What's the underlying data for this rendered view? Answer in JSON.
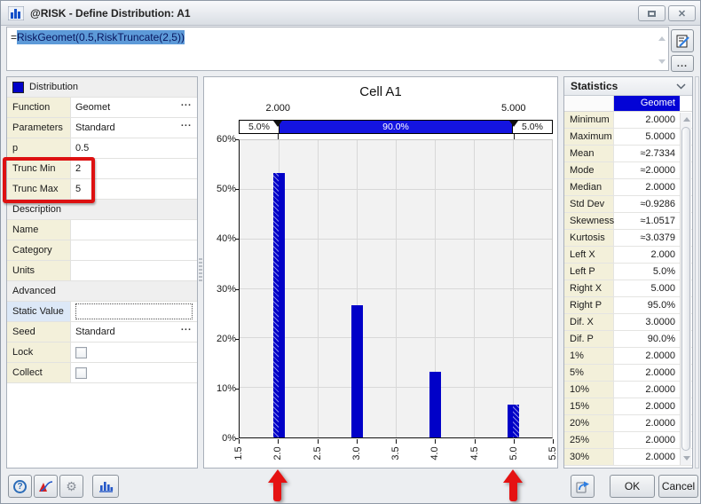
{
  "window": {
    "title": "@RISK - Define Distribution: A1"
  },
  "formula": {
    "prefix": "=",
    "selected_text": "RiskGeomet(0.5,RiskTruncate(2,5))"
  },
  "properties": {
    "rows": [
      {
        "type": "header",
        "label": "Distribution",
        "icon": "distribution-swatch"
      },
      {
        "type": "value",
        "label": "Function",
        "value": "Geomet",
        "ellipsis": true
      },
      {
        "type": "value",
        "label": "Parameters",
        "value": "Standard",
        "ellipsis": true
      },
      {
        "type": "value",
        "label": "p",
        "value": "0.5"
      },
      {
        "type": "value",
        "label": "Trunc Min",
        "value": "2"
      },
      {
        "type": "value",
        "label": "Trunc Max",
        "value": "5"
      },
      {
        "type": "header",
        "label": "Description"
      },
      {
        "type": "value",
        "label": "Name",
        "value": ""
      },
      {
        "type": "value",
        "label": "Category",
        "value": ""
      },
      {
        "type": "value",
        "label": "Units",
        "value": ""
      },
      {
        "type": "header",
        "label": "Advanced"
      },
      {
        "type": "input",
        "label": "Static Value",
        "value": ""
      },
      {
        "type": "value",
        "label": "Seed",
        "value": "Standard",
        "ellipsis": true
      },
      {
        "type": "checkbox",
        "label": "Lock",
        "checked": false
      },
      {
        "type": "checkbox",
        "label": "Collect",
        "checked": false
      }
    ]
  },
  "chart_data": {
    "type": "bar",
    "title": "Cell A1",
    "x": [
      2.0,
      3.0,
      4.0,
      5.0
    ],
    "values": [
      53.3,
      26.7,
      13.3,
      6.7
    ],
    "y_unit": "%",
    "xlim": [
      1.5,
      5.5
    ],
    "ylim": [
      0,
      60
    ],
    "x_ticks": [
      1.5,
      2.0,
      2.5,
      3.0,
      3.5,
      4.0,
      4.5,
      5.0,
      5.5
    ],
    "x_tick_labels": [
      "1.5",
      "2.0",
      "2.5",
      "3.0",
      "3.5",
      "4.0",
      "4.5",
      "5.0",
      "5.5"
    ],
    "y_ticks": [
      0,
      10,
      20,
      30,
      40,
      50,
      60
    ],
    "y_tick_labels": [
      "0%",
      "10%",
      "20%",
      "30%",
      "40%",
      "50%",
      "60%"
    ],
    "grid": true,
    "legend": "none",
    "delimiters": {
      "left_x": 2.0,
      "right_x": 5.0,
      "left_x_label": "2.000",
      "right_x_label": "5.000",
      "band_labels": [
        "5.0%",
        "90.0%",
        "5.0%"
      ]
    },
    "hatched_bars": {
      "2": "left",
      "5": "right"
    }
  },
  "statistics": {
    "title": "Statistics",
    "column_header": "Geomet",
    "rows": [
      [
        "Minimum",
        "2.0000"
      ],
      [
        "Maximum",
        "5.0000"
      ],
      [
        "Mean",
        "≈2.7334"
      ],
      [
        "Mode",
        "≈2.0000"
      ],
      [
        "Median",
        "2.0000"
      ],
      [
        "Std Dev",
        "≈0.9286"
      ],
      [
        "Skewness",
        "≈1.0517"
      ],
      [
        "Kurtosis",
        "≈3.0379"
      ],
      [
        "Left X",
        "2.000"
      ],
      [
        "Left P",
        "5.0%"
      ],
      [
        "Right X",
        "5.000"
      ],
      [
        "Right P",
        "95.0%"
      ],
      [
        "Dif. X",
        "3.0000"
      ],
      [
        "Dif. P",
        "90.0%"
      ],
      [
        "1%",
        "2.0000"
      ],
      [
        "5%",
        "2.0000"
      ],
      [
        "10%",
        "2.0000"
      ],
      [
        "15%",
        "2.0000"
      ],
      [
        "20%",
        "2.0000"
      ],
      [
        "25%",
        "2.0000"
      ],
      [
        "30%",
        "2.0000"
      ]
    ]
  },
  "footer": {
    "ok_label": "OK",
    "cancel_label": "Cancel",
    "more_label": "..."
  },
  "annotations": {
    "highlight_box": {
      "rows": [
        "Trunc Min",
        "Trunc Max"
      ]
    },
    "arrows_at_x": [
      2.0,
      5.0
    ]
  },
  "colors": {
    "bar": "#0101c8",
    "band": "#1414e0",
    "stats_header_bg": "#0303d6",
    "annotation": "#dd1111",
    "selection_bg": "#5d9ad8",
    "selection_text": "#07155e"
  }
}
